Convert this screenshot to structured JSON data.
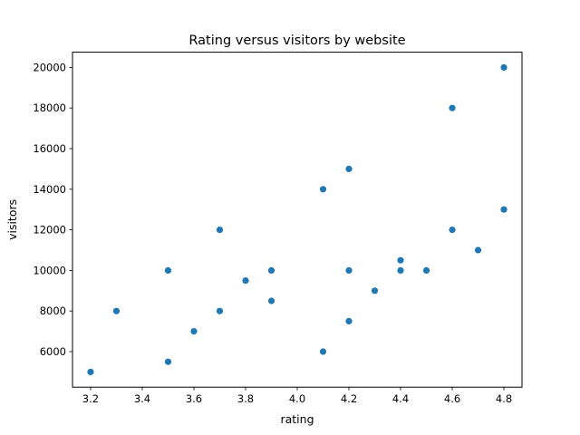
{
  "chart_data": {
    "type": "scatter",
    "title": "Rating versus visitors by website",
    "xlabel": "rating",
    "ylabel": "visitors",
    "xlim": [
      3.13,
      4.87
    ],
    "ylim": [
      4250,
      20750
    ],
    "xticks": [
      "3.2",
      "3.4",
      "3.6",
      "3.8",
      "4.0",
      "4.2",
      "4.4",
      "4.6",
      "4.8"
    ],
    "yticks": [
      "6000",
      "8000",
      "10000",
      "12000",
      "14000",
      "16000",
      "18000",
      "20000"
    ],
    "grid": false,
    "marker_color": "#1f77b4",
    "points": [
      {
        "x": 3.2,
        "y": 5000
      },
      {
        "x": 3.3,
        "y": 8000
      },
      {
        "x": 3.5,
        "y": 10000
      },
      {
        "x": 3.5,
        "y": 5500
      },
      {
        "x": 3.6,
        "y": 7000
      },
      {
        "x": 3.7,
        "y": 12000
      },
      {
        "x": 3.7,
        "y": 8000
      },
      {
        "x": 3.8,
        "y": 9500
      },
      {
        "x": 3.9,
        "y": 10000
      },
      {
        "x": 3.9,
        "y": 8500
      },
      {
        "x": 4.1,
        "y": 14000
      },
      {
        "x": 4.1,
        "y": 6000
      },
      {
        "x": 4.2,
        "y": 15000
      },
      {
        "x": 4.2,
        "y": 10000
      },
      {
        "x": 4.2,
        "y": 7500
      },
      {
        "x": 4.3,
        "y": 9000
      },
      {
        "x": 4.4,
        "y": 10500
      },
      {
        "x": 4.4,
        "y": 10000
      },
      {
        "x": 4.5,
        "y": 10000
      },
      {
        "x": 4.6,
        "y": 18000
      },
      {
        "x": 4.6,
        "y": 12000
      },
      {
        "x": 4.7,
        "y": 11000
      },
      {
        "x": 4.8,
        "y": 20000
      },
      {
        "x": 4.8,
        "y": 13000
      }
    ]
  }
}
